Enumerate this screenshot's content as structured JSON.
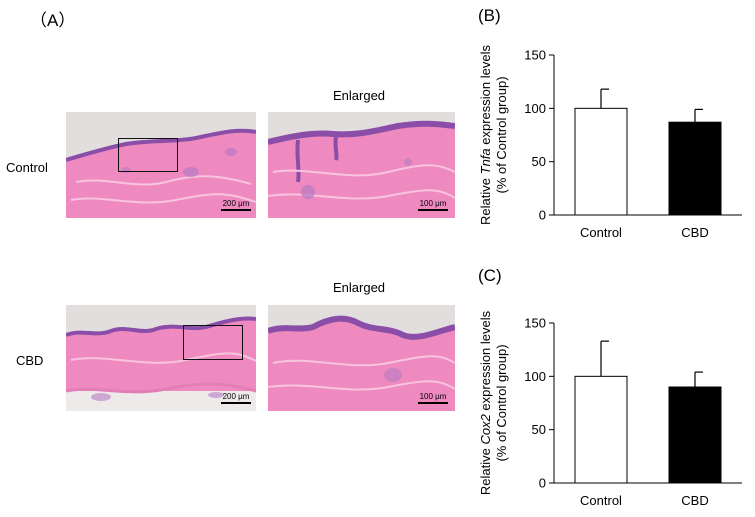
{
  "panels": {
    "a": "（A）",
    "b": "(B)",
    "c": "(C)"
  },
  "histology": {
    "rows": [
      "Control",
      "CBD"
    ],
    "enlarged_label": "Enlarged",
    "scale_overview": "200 μm",
    "scale_enlarged": "100 μm"
  },
  "chart_data": [
    {
      "type": "bar",
      "categories": [
        "Control",
        "CBD"
      ],
      "values": [
        100,
        87
      ],
      "errors": [
        18,
        12
      ],
      "bar_colors": [
        "#ffffff",
        "#000000"
      ],
      "ylabel_pre": "Relative ",
      "ylabel_gene": "Tnfa",
      "ylabel_post": " expression levels",
      "ylabel_line2": "(% of Control group)",
      "ylim": [
        0,
        150
      ],
      "yticks": [
        0,
        50,
        100,
        150
      ],
      "grid": false
    },
    {
      "type": "bar",
      "categories": [
        "Control",
        "CBD"
      ],
      "values": [
        100,
        90
      ],
      "errors": [
        33,
        14
      ],
      "bar_colors": [
        "#ffffff",
        "#000000"
      ],
      "ylabel_pre": "Relative ",
      "ylabel_gene": "Cox2",
      "ylabel_post": " expression levels",
      "ylabel_line2": "(% of Control group)",
      "ylim": [
        0,
        150
      ],
      "yticks": [
        0,
        50,
        100,
        150
      ],
      "grid": false
    }
  ]
}
